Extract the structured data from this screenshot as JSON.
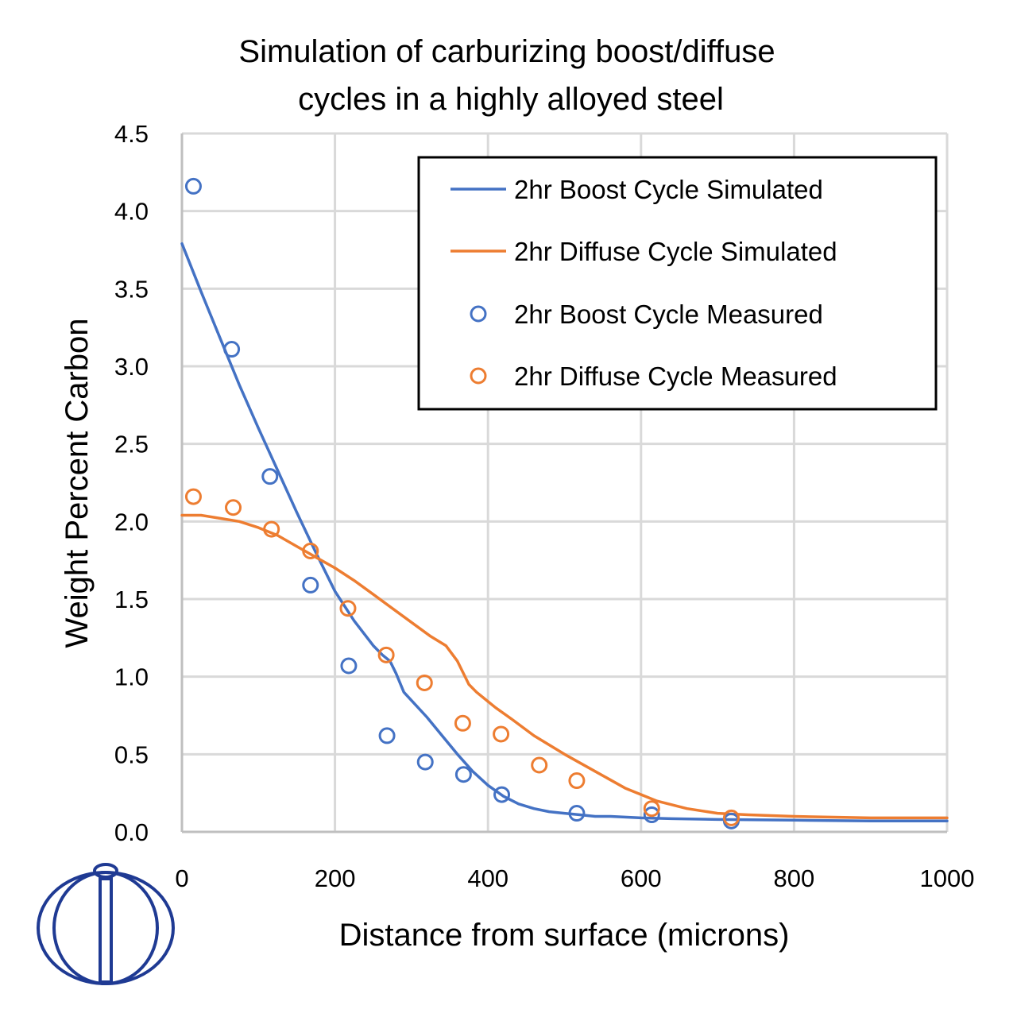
{
  "chart_data": {
    "type": "line",
    "title": "Simulation of carburizing boost/diffuse cycles in a highly alloyed steel",
    "title_lines": [
      "Simulation of carburizing boost/diffuse",
      "cycles in a highly alloyed steel"
    ],
    "xlabel": "Distance from surface (microns)",
    "ylabel": "Weight Percent Carbon",
    "xlim": [
      0,
      1000
    ],
    "ylim": [
      0,
      4.5
    ],
    "x_ticks": [
      0,
      200,
      400,
      600,
      800,
      1000
    ],
    "y_ticks": [
      0.0,
      0.5,
      1.0,
      1.5,
      2.0,
      2.5,
      3.0,
      3.5,
      4.0,
      4.5
    ],
    "x_tick_labels": [
      "0",
      "200",
      "400",
      "600",
      "800",
      "1000"
    ],
    "y_tick_labels": [
      "0.0",
      "0.5",
      "1.0",
      "1.5",
      "2.0",
      "2.5",
      "3.0",
      "3.5",
      "4.0",
      "4.5"
    ],
    "grid": true,
    "legend_position": "top-right",
    "series": [
      {
        "name": "2hr Boost Cycle Simulated",
        "kind": "line",
        "color": "#4472C4",
        "x": [
          0,
          25,
          50,
          75,
          100,
          125,
          150,
          175,
          200,
          225,
          250,
          262,
          272,
          280,
          290,
          305,
          320,
          340,
          360,
          380,
          400,
          420,
          440,
          460,
          480,
          500,
          520,
          540,
          560,
          600,
          640,
          700,
          800,
          900,
          1000
        ],
        "y": [
          3.79,
          3.48,
          3.18,
          2.88,
          2.6,
          2.33,
          2.06,
          1.8,
          1.55,
          1.36,
          1.2,
          1.14,
          1.1,
          1.02,
          0.9,
          0.82,
          0.74,
          0.62,
          0.5,
          0.39,
          0.3,
          0.23,
          0.18,
          0.15,
          0.13,
          0.12,
          0.11,
          0.1,
          0.1,
          0.09,
          0.085,
          0.08,
          0.075,
          0.07,
          0.07
        ]
      },
      {
        "name": "2hr Diffuse Cycle Simulated",
        "kind": "line",
        "color": "#ED7D31",
        "x": [
          0,
          25,
          50,
          75,
          100,
          125,
          150,
          175,
          200,
          225,
          250,
          275,
          300,
          325,
          345,
          360,
          375,
          385,
          395,
          410,
          430,
          460,
          500,
          540,
          580,
          620,
          660,
          700,
          740,
          800,
          900,
          1000
        ],
        "y": [
          2.04,
          2.04,
          2.02,
          2.0,
          1.96,
          1.91,
          1.84,
          1.77,
          1.7,
          1.62,
          1.53,
          1.44,
          1.35,
          1.26,
          1.2,
          1.1,
          0.95,
          0.9,
          0.86,
          0.8,
          0.73,
          0.62,
          0.5,
          0.39,
          0.28,
          0.2,
          0.15,
          0.12,
          0.11,
          0.1,
          0.09,
          0.09
        ]
      },
      {
        "name": "2hr Boost Cycle Measured",
        "kind": "scatter",
        "color": "#4472C4",
        "x": [
          15,
          65,
          115,
          168,
          218,
          268,
          318,
          368,
          418,
          516,
          614,
          718
        ],
        "y": [
          4.16,
          3.11,
          2.29,
          1.59,
          1.07,
          0.62,
          0.45,
          0.37,
          0.24,
          0.12,
          0.11,
          0.07
        ]
      },
      {
        "name": "2hr Diffuse Cycle Measured",
        "kind": "scatter",
        "color": "#ED7D31",
        "x": [
          15,
          67,
          117,
          168,
          217,
          267,
          317,
          367,
          417,
          467,
          516,
          614,
          718
        ],
        "y": [
          2.16,
          2.09,
          1.95,
          1.81,
          1.44,
          1.14,
          0.96,
          0.7,
          0.63,
          0.43,
          0.33,
          0.15,
          0.09
        ]
      }
    ]
  },
  "colors": {
    "grid": "#D9D9D9",
    "axis": "#BFBFBF",
    "logo": "#1F3A93"
  }
}
